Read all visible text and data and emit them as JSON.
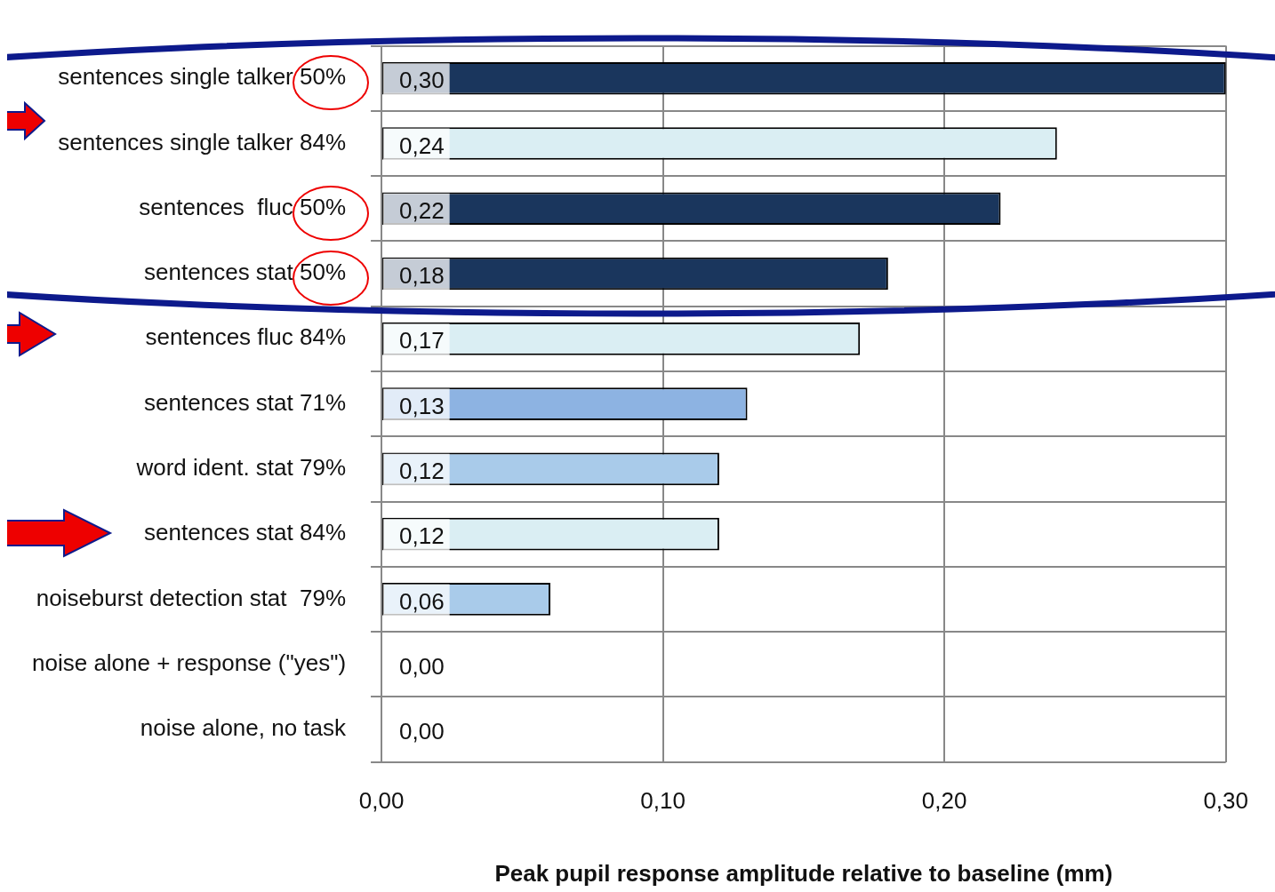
{
  "chart_data": {
    "type": "bar",
    "orientation": "horizontal",
    "xlabel": "Peak pupil response amplitude relative to baseline (mm)",
    "categories": [
      "sentences single talker 50%",
      "sentences single talker 84%",
      "sentences  fluc 50%",
      "sentences stat 50%",
      "sentences fluc 84%",
      "sentences stat 71%",
      "word ident. stat 79%",
      "sentences stat 84%",
      "noiseburst detection stat  79%",
      "noise alone + response (\"yes\")",
      "noise alone, no task"
    ],
    "values": [
      0.3,
      0.24,
      0.22,
      0.18,
      0.17,
      0.13,
      0.12,
      0.12,
      0.06,
      0,
      0
    ],
    "value_labels": [
      "0,30",
      "0,24",
      "0,22",
      "0,18",
      "0,17",
      "0,13",
      "0,12",
      "0,12",
      "0,06",
      "0,00",
      "0,00"
    ],
    "colors": [
      "#1a365d",
      "#daeef3",
      "#1a365d",
      "#1a365d",
      "#daeef3",
      "#8db3e2",
      "#a9cbea",
      "#daeef3",
      "#a9cbea",
      "#daeef3",
      "#daeef3"
    ],
    "xlim": [
      0,
      0.3
    ],
    "xticks": [
      {
        "value": 0,
        "label": "0,00"
      },
      {
        "value": 0.1,
        "label": "0,10"
      },
      {
        "value": 0.2,
        "label": "0,20"
      },
      {
        "value": 0.3,
        "label": "0,30"
      }
    ],
    "grid": true,
    "legend": false
  }
}
